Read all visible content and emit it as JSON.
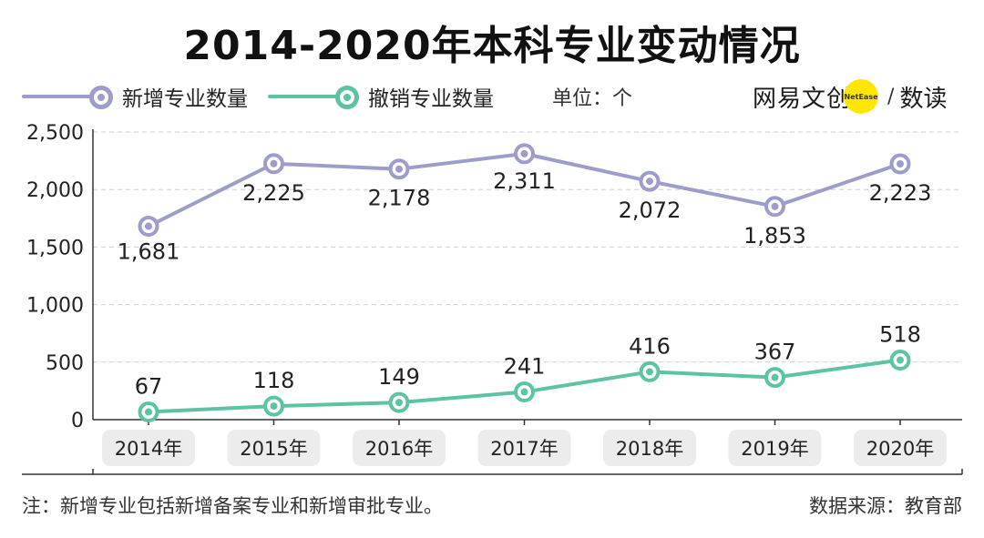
{
  "title": "2014-2020年本科专业变动情况",
  "legend": {
    "series1": "新增专业数量",
    "series2": "撤销专业数量",
    "unit": "单位：个"
  },
  "logo": {
    "brand": "网易文创",
    "badge": "NetEase",
    "slash": "/",
    "sub": "数读"
  },
  "footer": {
    "note": "注：新增专业包括新增备案专业和新增审批专业。",
    "source": "数据来源：教育部"
  },
  "colors": {
    "series1": "#9d9dcc",
    "series2": "#5cc4a4",
    "grid": "#cfcfcf",
    "axis": "#333333",
    "tick_bg": "#ececec"
  },
  "chart_data": {
    "type": "line",
    "title": "2014-2020年本科专业变动情况",
    "categories": [
      "2014年",
      "2015年",
      "2016年",
      "2017年",
      "2018年",
      "2019年",
      "2020年"
    ],
    "series": [
      {
        "name": "新增专业数量",
        "values": [
          1681,
          2225,
          2178,
          2311,
          2072,
          1853,
          2223
        ],
        "labels": [
          "1,681",
          "2,225",
          "2,178",
          "2,311",
          "2,072",
          "1,853",
          "2,223"
        ]
      },
      {
        "name": "撤销专业数量",
        "values": [
          67,
          118,
          149,
          241,
          416,
          367,
          518
        ],
        "labels": [
          "67",
          "118",
          "149",
          "241",
          "416",
          "367",
          "518"
        ]
      }
    ],
    "yticks": [
      0,
      500,
      1000,
      1500,
      2000,
      2500
    ],
    "ytick_labels": [
      "0",
      "500",
      "1,000",
      "1,500",
      "2,000",
      "2,500"
    ],
    "ylim": [
      0,
      2500
    ],
    "xlabel": "",
    "ylabel": "单位：个",
    "grid": true,
    "legend_position": "top-left"
  }
}
